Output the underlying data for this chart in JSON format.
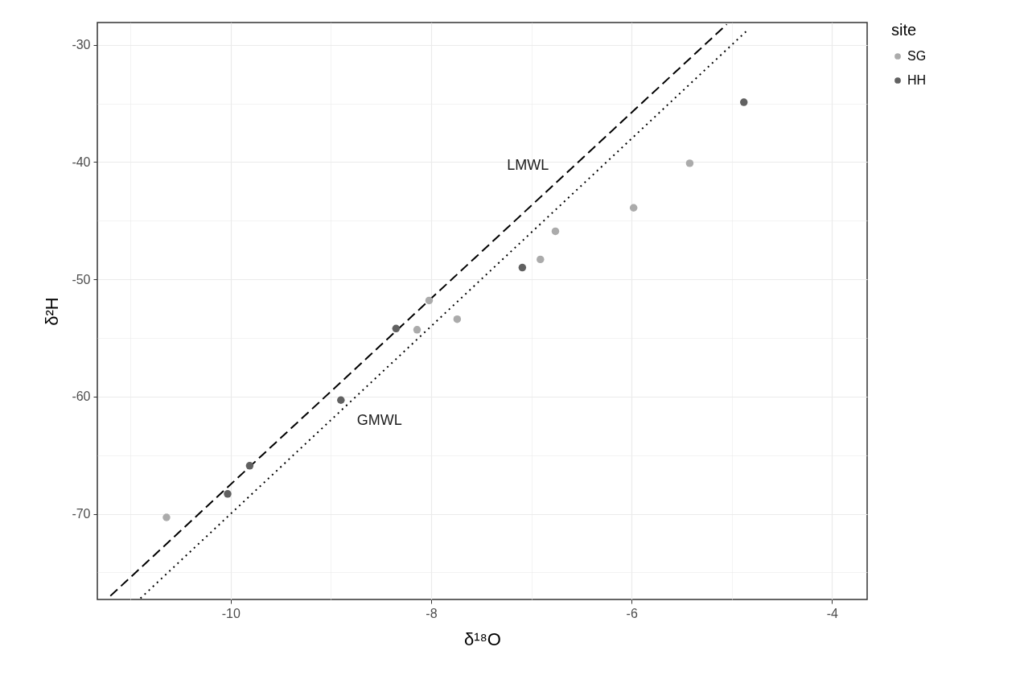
{
  "chart_data": {
    "type": "scatter",
    "xlabel": "δ¹⁸O",
    "ylabel": "δ²H",
    "legend_title": "site",
    "legend": "right",
    "grid": true,
    "xlim": [
      -11.33,
      -3.65
    ],
    "ylim": [
      -77.3,
      -28.1
    ],
    "xticks": [
      {
        "value": -11,
        "label": null
      },
      -10,
      {
        "value": -9,
        "label": null
      },
      -8,
      {
        "value": -7,
        "label": null
      },
      -6,
      {
        "value": -5,
        "label": null
      },
      -4
    ],
    "yticks": [
      {
        "value": -75,
        "label": null
      },
      -70,
      {
        "value": -65,
        "label": null
      },
      -60,
      {
        "value": -55,
        "label": null
      },
      -50,
      {
        "value": -45,
        "label": null
      },
      -40,
      {
        "value": -35,
        "label": null
      },
      -30
    ],
    "series": [
      {
        "type": "line",
        "name": "LMWL",
        "line_style": "dashed",
        "marker": "none",
        "color": "#000000",
        "x": [
          -11.2,
          -5.05
        ],
        "values": [
          -77.0,
          -28.25
        ]
      },
      {
        "type": "line",
        "name": "GMWL",
        "line_style": "dotted",
        "marker": "none",
        "color": "#000000",
        "x": [
          -10.9,
          -4.85
        ],
        "values": [
          -77.2,
          -28.8
        ]
      },
      {
        "name": "SG",
        "marker": "circle",
        "color": "#ababab",
        "x": [
          -10.64,
          -8.14,
          -8.02,
          -7.74,
          -6.91,
          -6.76,
          -5.98,
          -5.42
        ],
        "values": [
          -70.3,
          -54.3,
          -51.8,
          -53.4,
          -48.3,
          -45.9,
          -43.9,
          -40.1
        ]
      },
      {
        "name": "HH",
        "marker": "circle",
        "color": "#616161",
        "x": [
          -10.03,
          -9.81,
          -8.9,
          -8.35,
          -7.09,
          -4.88
        ],
        "values": [
          -68.3,
          -65.9,
          -60.3,
          -54.2,
          -49.0,
          -34.9
        ]
      }
    ]
  }
}
